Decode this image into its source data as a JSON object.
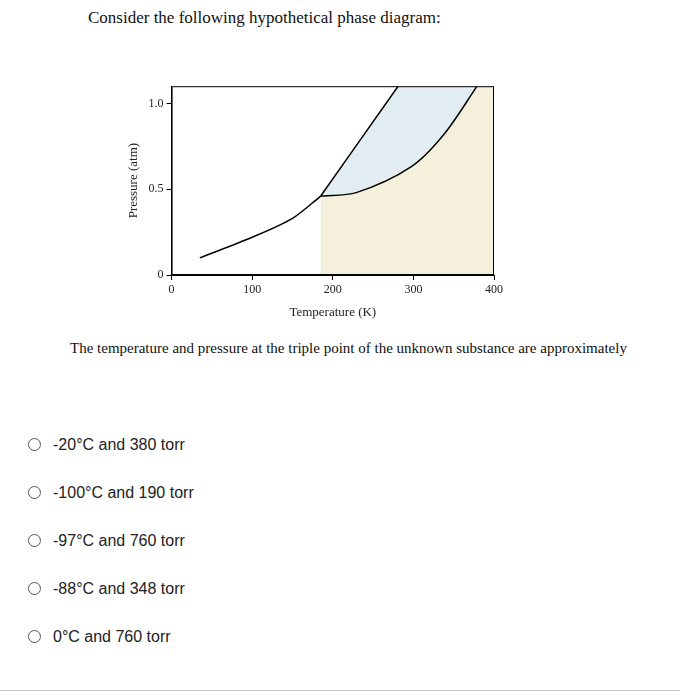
{
  "heading": "Consider the following hypothetical phase diagram:",
  "chart_data": {
    "type": "line",
    "x_label": "Temperature (K)",
    "y_label": "Pressure (atm)",
    "series": [
      {
        "color": "#000000",
        "x": [
          35,
          100,
          150,
          185
        ],
        "values": [
          0.1,
          0.22,
          0.33,
          0.46
        ]
      },
      {
        "color": "#000000",
        "x": [
          185,
          281
        ],
        "values": [
          0.46,
          1.1
        ]
      },
      {
        "color": "#000000",
        "x": [
          185,
          229,
          297,
          338,
          379
        ],
        "values": [
          0.46,
          0.48,
          0.63,
          0.82,
          1.1
        ]
      }
    ],
    "xlim": [
      0,
      400
    ],
    "xticks": [
      0,
      100,
      200,
      300,
      400
    ],
    "ylim": [
      0,
      1.1
    ],
    "yticks": [
      0,
      0.5,
      {
        "value": 1,
        "label": "1.0"
      }
    ],
    "grid": false
  },
  "question": {
    "text": "The temperature and pressure at the triple point of the unknown substance are approximately",
    "options": [
      "-20°C and 380 torr",
      "-100°C and 190 torr",
      "-97°C and 760 torr",
      "-88°C and 348 torr",
      "0°C and 760 torr"
    ]
  }
}
